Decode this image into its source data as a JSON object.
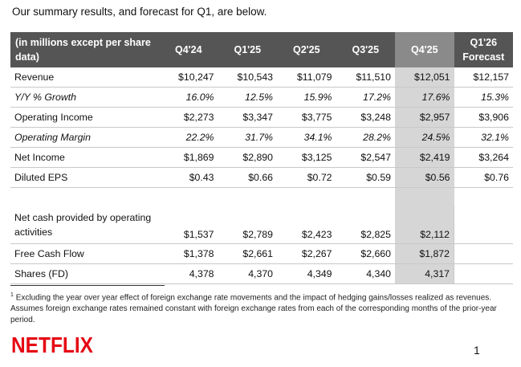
{
  "intro": "Our summary results, and forecast for Q1, are below.",
  "table": {
    "header_label": "(in millions except per share data)",
    "columns": [
      "Q4'24",
      "Q1'25",
      "Q2'25",
      "Q3'25",
      "Q4'25",
      "Q1'26 Forecast"
    ],
    "rows": {
      "revenue": {
        "label": "Revenue",
        "values": [
          "$10,247",
          "$10,543",
          "$11,079",
          "$11,510",
          "$12,051",
          "$12,157"
        ]
      },
      "yoy": {
        "label": "Y/Y % Growth",
        "values": [
          "16.0%",
          "12.5%",
          "15.9%",
          "17.2%",
          "17.6%",
          "15.3%"
        ]
      },
      "op_income": {
        "label": "Operating Income",
        "values": [
          "$2,273",
          "$3,347",
          "$3,775",
          "$3,248",
          "$2,957",
          "$3,906"
        ]
      },
      "op_margin": {
        "label": "Operating Margin",
        "values": [
          "22.2%",
          "31.7%",
          "34.1%",
          "28.2%",
          "24.5%",
          "32.1%"
        ]
      },
      "net_income": {
        "label": "Net Income",
        "values": [
          "$1,869",
          "$2,890",
          "$3,125",
          "$2,547",
          "$2,419",
          "$3,264"
        ]
      },
      "eps": {
        "label": "Diluted EPS",
        "values": [
          "$0.43",
          "$0.66",
          "$0.72",
          "$0.59",
          "$0.56",
          "$0.76"
        ]
      },
      "net_cash": {
        "label": "Net cash provided by operating activities",
        "values": [
          "$1,537",
          "$2,789",
          "$2,423",
          "$2,825",
          "$2,112",
          ""
        ]
      },
      "fcf": {
        "label": "Free Cash Flow",
        "values": [
          "$1,378",
          "$2,661",
          "$2,267",
          "$2,660",
          "$1,872",
          ""
        ]
      },
      "shares": {
        "label": "Shares (FD)",
        "values": [
          "4,378",
          "4,370",
          "4,349",
          "4,340",
          "4,317",
          ""
        ]
      }
    }
  },
  "footnote": {
    "marker": "1",
    "text": "Excluding the year over year effect of foreign exchange rate movements and the impact of hedging gains/losses realized as revenues. Assumes foreign exchange rates remained constant with foreign exchange rates from each of the corresponding months of the prior-year period."
  },
  "logo": {
    "text": "NETFLIX",
    "color": "#e50914"
  },
  "page_number": "1"
}
